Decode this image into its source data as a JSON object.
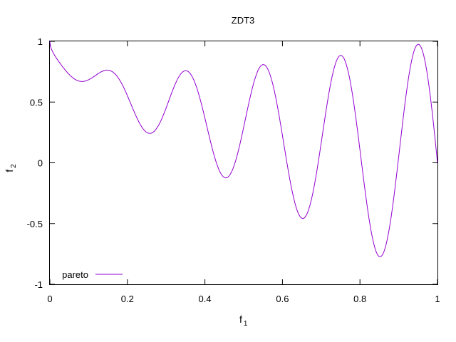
{
  "chart_data": {
    "type": "line",
    "title": "ZDT3",
    "xlabel": {
      "main": "f",
      "sub": "1"
    },
    "ylabel": {
      "main": "f",
      "sub": "2"
    },
    "xlim": [
      0,
      1
    ],
    "ylim": [
      -1,
      1
    ],
    "x_ticks": [
      0,
      0.2,
      0.4,
      0.6,
      0.8,
      1
    ],
    "x_tick_labels": [
      "0",
      "0.2",
      "0.4",
      "0.6",
      "0.8",
      "1"
    ],
    "y_ticks": [
      -1,
      -0.5,
      0,
      0.5,
      1
    ],
    "y_tick_labels": [
      "-1",
      "-0.5",
      "0",
      "0.5",
      "1"
    ],
    "grid": false,
    "legend_position": "bottom-left",
    "series": [
      {
        "name": "pareto",
        "color": "#9400d3",
        "function": "f2 = 1 - sqrt(f1) - f1*sin(10*pi*f1)",
        "x_range": [
          0,
          1
        ]
      }
    ]
  }
}
